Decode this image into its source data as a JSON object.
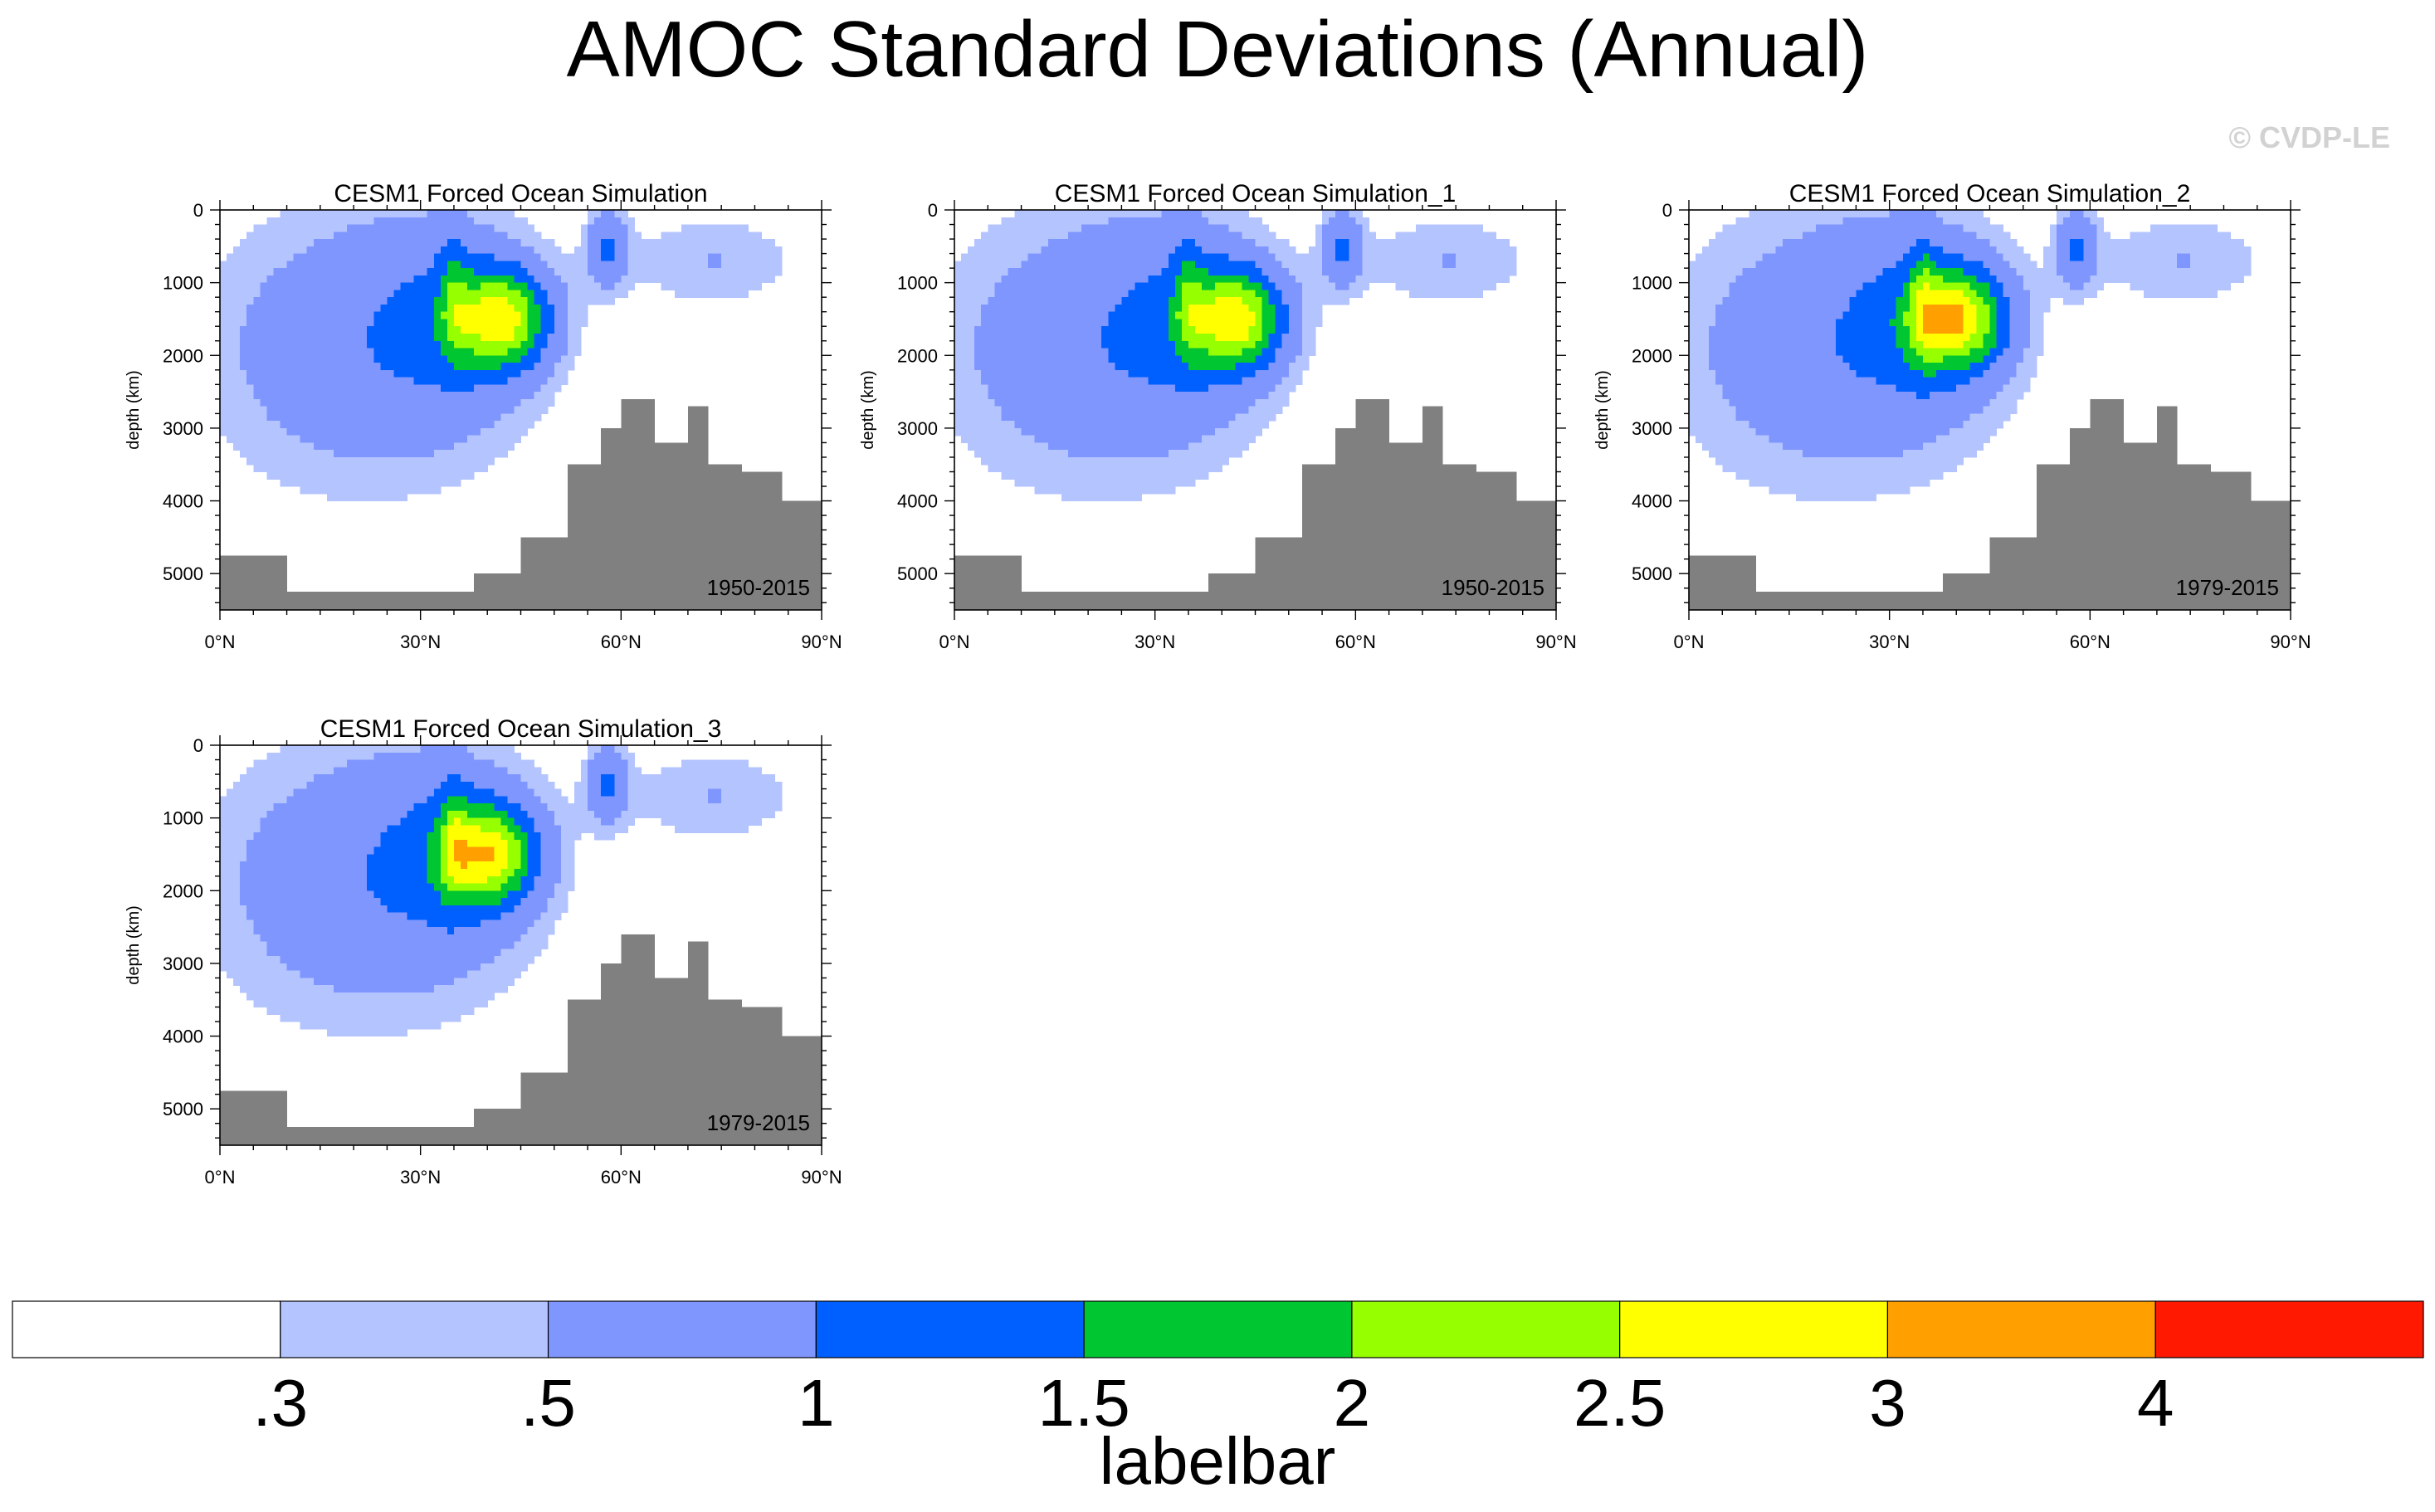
{
  "figure": {
    "title": "AMOC Standard Deviations (Annual)",
    "watermark": "© CVDP-LE"
  },
  "colors": {
    "land": "#808080",
    "levels": [
      "#ffffff",
      "#b4c4ff",
      "#7f96ff",
      "#0060ff",
      "#00c632",
      "#96ff00",
      "#ffff00",
      "#ffa000",
      "#ff1900"
    ]
  },
  "labelbar": {
    "title": "labelbar",
    "labels": [
      ".3",
      ".5",
      "1",
      "1.5",
      "2",
      "2.5",
      "3",
      "4"
    ]
  },
  "chart_data": [
    {
      "type": "contour",
      "title": "CESM1 Forced Ocean Simulation",
      "period": "1950-2015",
      "ylabel": "depth (km)",
      "xlim": [
        0,
        90
      ],
      "ylim": [
        0,
        5500
      ],
      "xticks": [
        "0°N",
        "30°N",
        "60°N",
        "90°N"
      ],
      "yticks": [
        "0",
        "1000",
        "2000",
        "3000",
        "4000",
        "5000"
      ],
      "levels": [
        0.3,
        0.5,
        1,
        1.5,
        2,
        2.5,
        3,
        4
      ],
      "core": {
        "lat": 42,
        "depth": 1500,
        "max": 2.6
      }
    },
    {
      "type": "contour",
      "title": "CESM1 Forced Ocean Simulation_1",
      "period": "1950-2015",
      "ylabel": "depth (km)",
      "xlim": [
        0,
        90
      ],
      "ylim": [
        0,
        5500
      ],
      "xticks": [
        "0°N",
        "30°N",
        "60°N",
        "90°N"
      ],
      "yticks": [
        "0",
        "1000",
        "2000",
        "3000",
        "4000",
        "5000"
      ],
      "levels": [
        0.3,
        0.5,
        1,
        1.5,
        2,
        2.5,
        3,
        4
      ],
      "core": {
        "lat": 42,
        "depth": 1500,
        "max": 2.6
      }
    },
    {
      "type": "contour",
      "title": "CESM1 Forced Ocean Simulation_2",
      "period": "1979-2015",
      "ylabel": "depth (km)",
      "xlim": [
        0,
        90
      ],
      "ylim": [
        0,
        5500
      ],
      "xticks": [
        "0°N",
        "30°N",
        "60°N",
        "90°N"
      ],
      "yticks": [
        "0",
        "1000",
        "2000",
        "3000",
        "4000",
        "5000"
      ],
      "levels": [
        0.3,
        0.5,
        1,
        1.5,
        2,
        2.5,
        3,
        4
      ],
      "core": {
        "lat": 40,
        "depth": 1500,
        "max": 2.7
      }
    },
    {
      "type": "contour",
      "title": "CESM1 Forced Ocean Simulation_3",
      "period": "1979-2015",
      "ylabel": "depth (km)",
      "xlim": [
        0,
        90
      ],
      "ylim": [
        0,
        5500
      ],
      "xticks": [
        "0°N",
        "30°N",
        "60°N",
        "90°N"
      ],
      "yticks": [
        "0",
        "1000",
        "2000",
        "3000",
        "4000",
        "5000"
      ],
      "levels": [
        0.3,
        0.5,
        1,
        1.5,
        2,
        2.5,
        3,
        4
      ],
      "core": {
        "lat": 40,
        "depth": 1500,
        "max": 2.6
      }
    }
  ]
}
